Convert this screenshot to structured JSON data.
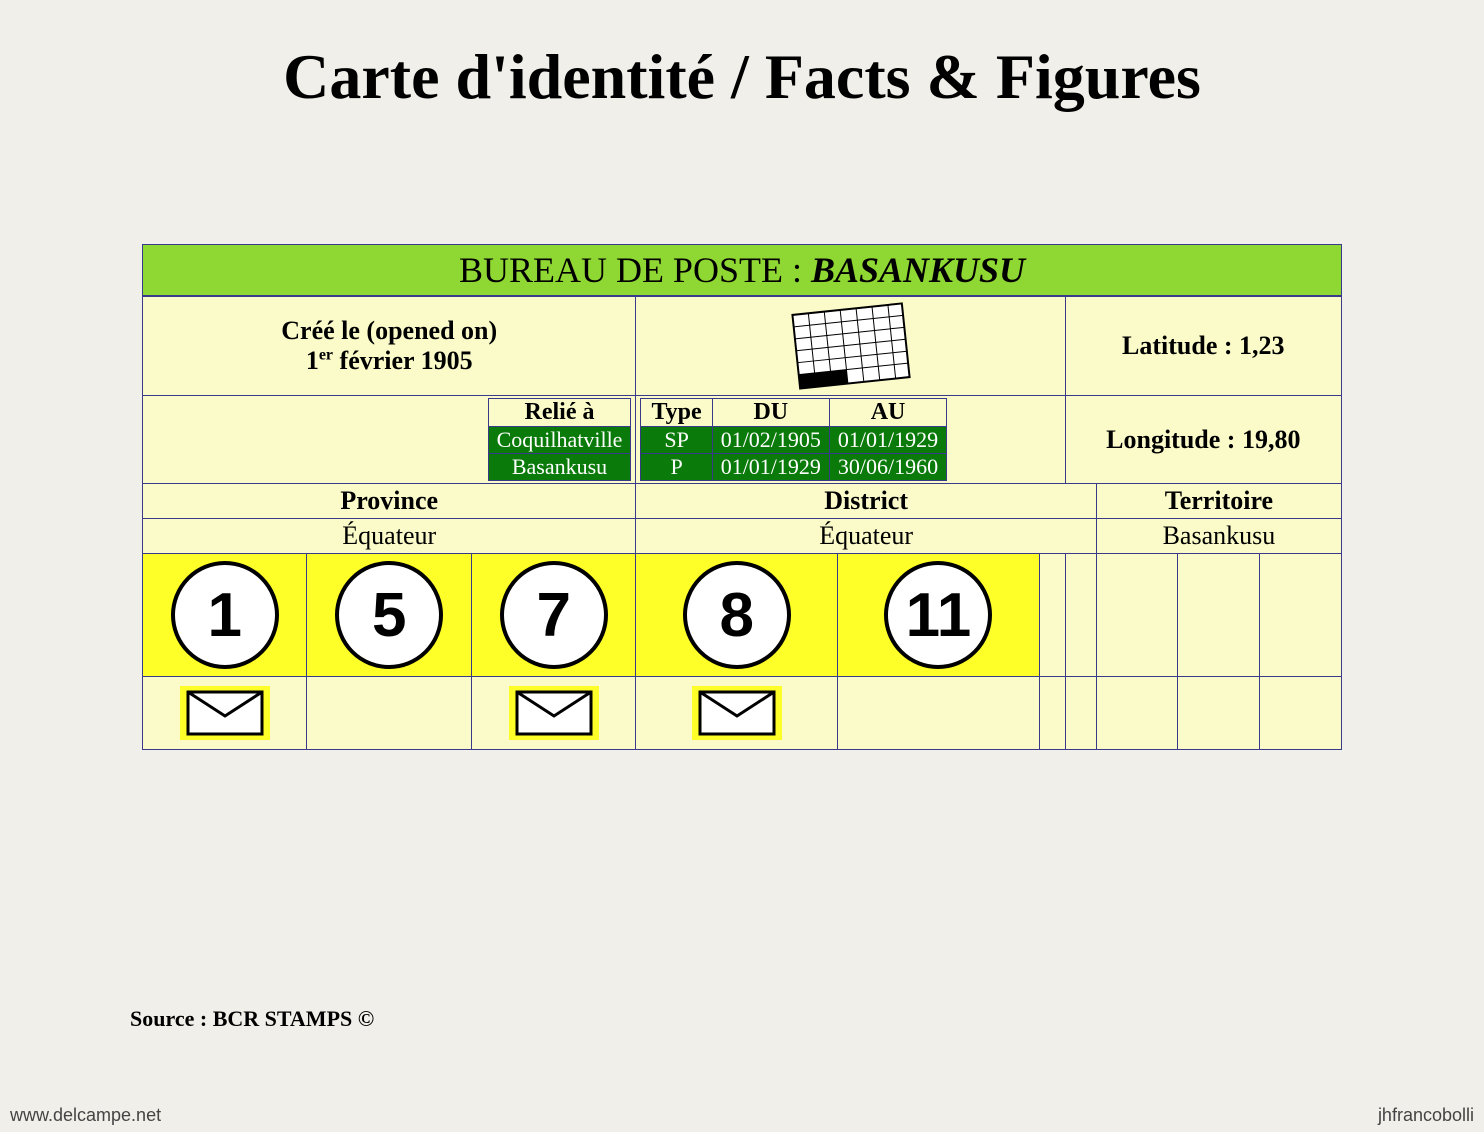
{
  "title": "Carte d'identité / Facts & Figures",
  "header": {
    "label": "BUREAU DE POSTE : ",
    "name": "BASANKUSU"
  },
  "created": {
    "label": "Créé le (opened on)",
    "date_prefix": "1",
    "date_sup": "er",
    "date_rest": " février 1905"
  },
  "latitude": {
    "label": "Latitude : ",
    "value": "1,23"
  },
  "longitude": {
    "label": "Longitude : ",
    "value": "19,80"
  },
  "linked": {
    "header": "Relié à",
    "rows": [
      "Coquilhatville",
      "Basankusu"
    ]
  },
  "periods": {
    "headers": {
      "type": "Type",
      "from": "DU",
      "to": "AU"
    },
    "rows": [
      {
        "type": "SP",
        "from": "01/02/1905",
        "to": "01/01/1929"
      },
      {
        "type": "P",
        "from": "01/01/1929",
        "to": "30/06/1960"
      }
    ]
  },
  "admin": {
    "province": {
      "label": "Province",
      "value": "Équateur"
    },
    "district": {
      "label": "District",
      "value": "Équateur"
    },
    "territoire": {
      "label": "Territoire",
      "value": "Basankusu"
    }
  },
  "circles": [
    "1",
    "5",
    "7",
    "8",
    "11",
    "",
    "",
    "",
    "",
    ""
  ],
  "envelopes": [
    true,
    false,
    true,
    true,
    false,
    false,
    false,
    false,
    false,
    false
  ],
  "source": "Source : BCR STAMPS ©",
  "watermark_left": "www.delcampe.net",
  "watermark_right": "jhfrancobolli",
  "colors": {
    "page_bg": "#f0efe9",
    "header_bg": "#8fd733",
    "card_bg": "#fafbc9",
    "border": "#3a3a8a",
    "green_cell": "#0a7a0a",
    "yellow_bright": "#fefe28"
  }
}
